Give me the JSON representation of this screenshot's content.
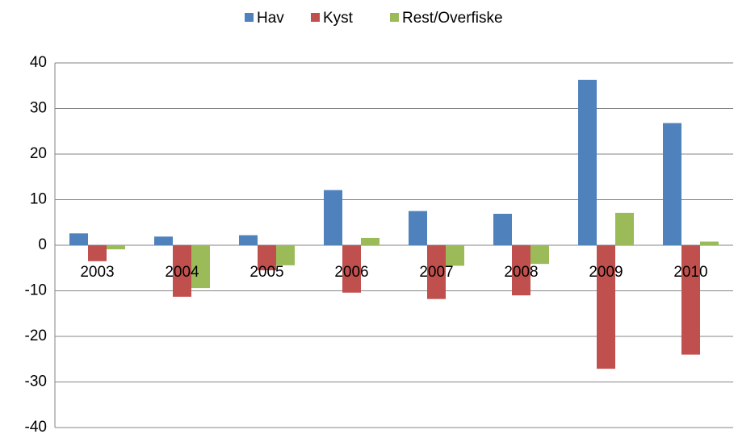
{
  "chart_data": {
    "type": "bar",
    "categories": [
      "2003",
      "2004",
      "2005",
      "2006",
      "2007",
      "2008",
      "2009",
      "2010"
    ],
    "series": [
      {
        "name": "Hav",
        "color": "#4f81bd",
        "values": [
          2.6,
          1.9,
          2.2,
          12.1,
          7.5,
          6.9,
          36.3,
          26.8
        ]
      },
      {
        "name": "Kyst",
        "color": "#c0504d",
        "values": [
          -3.5,
          -11.3,
          -5.5,
          -10.4,
          -11.8,
          -11.0,
          -27.1,
          -24.0
        ]
      },
      {
        "name": "Rest/Overfiske",
        "color": "#9bbb59",
        "values": [
          -0.9,
          -9.4,
          -4.4,
          1.6,
          -4.5,
          -4.1,
          7.1,
          0.8
        ]
      }
    ],
    "ylim": [
      -40,
      40
    ],
    "yticks": [
      -40,
      -30,
      -20,
      -10,
      0,
      10,
      20,
      30,
      40
    ],
    "grid": true,
    "legend": "top"
  }
}
